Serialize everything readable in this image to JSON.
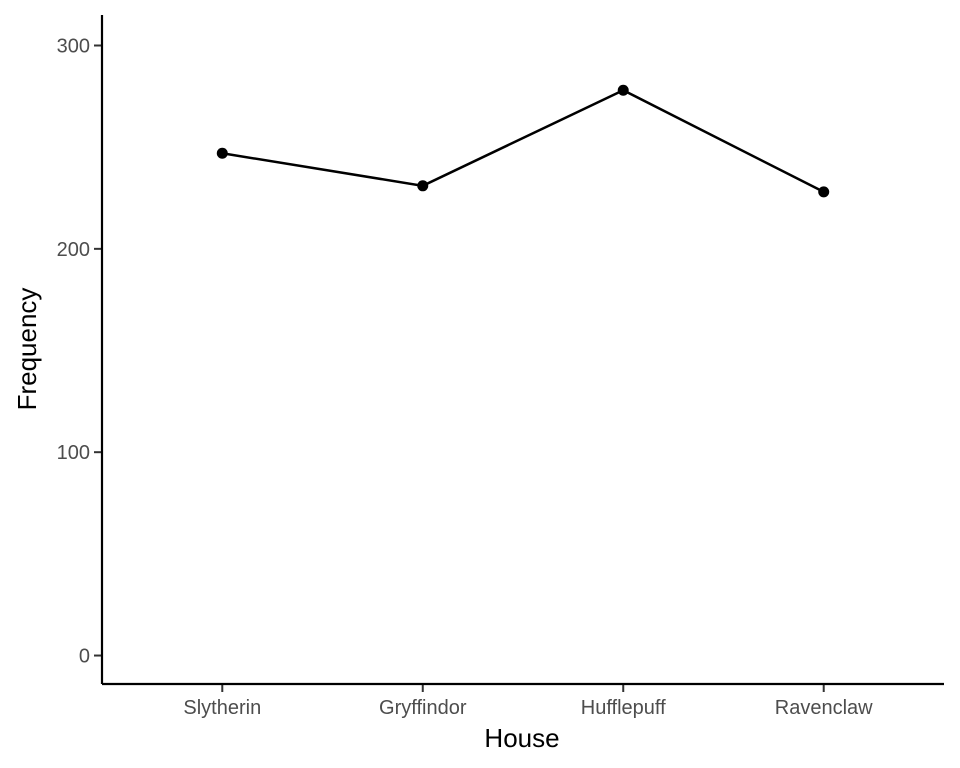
{
  "chart_data": {
    "type": "line",
    "categories": [
      "Slytherin",
      "Gryffindor",
      "Hufflepuff",
      "Ravenclaw"
    ],
    "values": [
      247,
      231,
      278,
      228
    ],
    "title": "",
    "xlabel": "House",
    "ylabel": "Frequency",
    "ylim": [
      -14,
      315
    ],
    "yticks": [
      0,
      100,
      200,
      300
    ],
    "grid": false,
    "colors": {
      "line": "#000000",
      "point": "#000000",
      "axis": "#000000",
      "tick_label": "#4d4d4d"
    }
  }
}
